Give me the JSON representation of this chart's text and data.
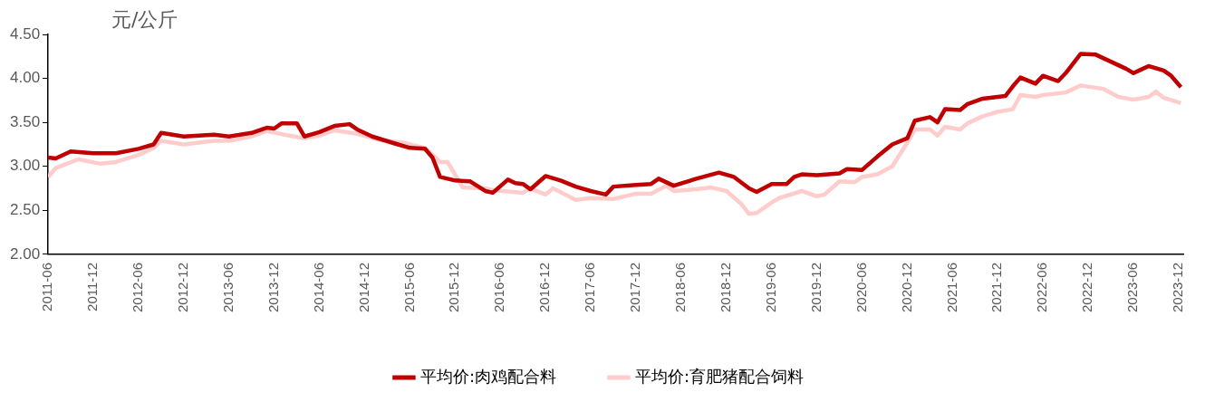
{
  "chart_data": {
    "type": "line",
    "ylabel": "元/公斤",
    "legend": "bottom",
    "grid": false,
    "marker": "none",
    "xlim": [
      "2011-06",
      "2023-12-20"
    ],
    "xticks": [
      "2011-06",
      "2011-12",
      "2012-06",
      "2012-12",
      "2013-06",
      "2013-12",
      "2014-06",
      "2014-12",
      "2015-06",
      "2015-12",
      "2016-06",
      "2016-12",
      "2017-06",
      "2017-12",
      "2018-06",
      "2018-12",
      "2019-06",
      "2019-12",
      "2020-06",
      "2020-12",
      "2021-06",
      "2021-12",
      "2022-06",
      "2022-12",
      "2023-06",
      "2023-12"
    ],
    "ylim": [
      2,
      4.5
    ],
    "yticks": [
      {
        "value": 2,
        "label": "2.00"
      },
      {
        "value": 2.5,
        "label": "2.50"
      },
      {
        "value": 3,
        "label": "3.00"
      },
      {
        "value": 3.5,
        "label": "3.50"
      },
      {
        "value": 4,
        "label": "4.00"
      },
      {
        "value": 4.5,
        "label": "4.50"
      }
    ],
    "series": [
      {
        "name": "平均价:肉鸡配合料",
        "color": "#c00000",
        "x": [
          "2011-06",
          "2011-07",
          "2011-09",
          "2011-12",
          "2012-03",
          "2012-06",
          "2012-08",
          "2012-09",
          "2012-12",
          "2013-04",
          "2013-06",
          "2013-09",
          "2013-11",
          "2013-12",
          "2014-01",
          "2014-03",
          "2014-04",
          "2014-06",
          "2014-08",
          "2014-10",
          "2014-11",
          "2015-01",
          "2015-04",
          "2015-06",
          "2015-08",
          "2015-09",
          "2015-10",
          "2015-12",
          "2016-02",
          "2016-04",
          "2016-05",
          "2016-07",
          "2016-08",
          "2016-09",
          "2016-10",
          "2016-12",
          "2017-02",
          "2017-04",
          "2017-06",
          "2017-08",
          "2017-09",
          "2017-12",
          "2018-02",
          "2018-03",
          "2018-05",
          "2018-08",
          "2018-11",
          "2019-01",
          "2019-03",
          "2019-04",
          "2019-06",
          "2019-08",
          "2019-09",
          "2019-10",
          "2019-12",
          "2020-03",
          "2020-04",
          "2020-06",
          "2020-08",
          "2020-10",
          "2020-12",
          "2021-01",
          "2021-03",
          "2021-04",
          "2021-05",
          "2021-07",
          "2021-08",
          "2021-10",
          "2022-01",
          "2022-02",
          "2022-03",
          "2022-05",
          "2022-06",
          "2022-08",
          "2022-09",
          "2022-11",
          "2023-01",
          "2023-03",
          "2023-05",
          "2023-06",
          "2023-07",
          "2023-08",
          "2023-10",
          "2023-11",
          "2023-12-10"
        ],
        "values": [
          3.1,
          3.09,
          3.17,
          3.15,
          3.15,
          3.2,
          3.25,
          3.38,
          3.34,
          3.36,
          3.34,
          3.38,
          3.44,
          3.43,
          3.49,
          3.49,
          3.34,
          3.39,
          3.46,
          3.48,
          3.42,
          3.34,
          3.26,
          3.21,
          3.2,
          3.1,
          2.88,
          2.84,
          2.83,
          2.72,
          2.7,
          2.85,
          2.81,
          2.8,
          2.74,
          2.89,
          2.84,
          2.77,
          2.72,
          2.68,
          2.77,
          2.79,
          2.8,
          2.86,
          2.78,
          2.86,
          2.93,
          2.88,
          2.75,
          2.71,
          2.8,
          2.8,
          2.88,
          2.91,
          2.9,
          2.92,
          2.97,
          2.96,
          3.11,
          3.25,
          3.32,
          3.52,
          3.56,
          3.5,
          3.65,
          3.64,
          3.71,
          3.77,
          3.8,
          3.91,
          4.01,
          3.94,
          4.03,
          3.97,
          4.06,
          4.28,
          4.27,
          4.19,
          4.11,
          4.06,
          4.1,
          4.14,
          4.09,
          4.03,
          3.9
        ]
      },
      {
        "name": "平均价:育肥猪配合饲料",
        "color": "#ffcccc",
        "x": [
          "2011-06",
          "2011-07",
          "2011-10",
          "2012-01",
          "2012-03",
          "2012-06",
          "2012-08",
          "2012-09",
          "2012-12",
          "2013-04",
          "2013-06",
          "2013-09",
          "2013-11",
          "2014-02",
          "2014-04",
          "2014-06",
          "2014-08",
          "2014-11",
          "2015-02",
          "2015-05",
          "2015-08",
          "2015-10",
          "2015-11",
          "2016-01",
          "2016-04",
          "2016-05",
          "2016-09",
          "2016-10",
          "2016-12",
          "2017-01",
          "2017-04",
          "2017-06",
          "2017-09",
          "2017-12",
          "2018-02",
          "2018-04",
          "2018-05",
          "2018-08",
          "2018-10",
          "2018-12",
          "2019-02",
          "2019-03",
          "2019-04",
          "2019-06",
          "2019-07",
          "2019-10",
          "2019-12",
          "2020-01",
          "2020-03",
          "2020-05",
          "2020-06",
          "2020-08",
          "2020-10",
          "2020-12",
          "2021-01",
          "2021-03",
          "2021-04",
          "2021-05",
          "2021-07",
          "2021-08",
          "2021-10",
          "2021-12",
          "2022-02",
          "2022-03",
          "2022-05",
          "2022-06",
          "2022-09",
          "2022-11",
          "2023-02",
          "2023-04",
          "2023-06",
          "2023-08",
          "2023-09",
          "2023-10",
          "2023-12-10"
        ],
        "values": [
          2.88,
          2.98,
          3.08,
          3.03,
          3.05,
          3.13,
          3.21,
          3.29,
          3.25,
          3.29,
          3.29,
          3.34,
          3.4,
          3.35,
          3.32,
          3.35,
          3.41,
          3.37,
          3.3,
          3.27,
          3.21,
          3.05,
          3.05,
          2.76,
          2.75,
          2.73,
          2.7,
          2.75,
          2.68,
          2.75,
          2.62,
          2.64,
          2.63,
          2.69,
          2.69,
          2.78,
          2.72,
          2.74,
          2.76,
          2.72,
          2.57,
          2.46,
          2.47,
          2.59,
          2.64,
          2.72,
          2.66,
          2.68,
          2.83,
          2.82,
          2.88,
          2.91,
          3.0,
          3.27,
          3.42,
          3.42,
          3.35,
          3.45,
          3.42,
          3.49,
          3.57,
          3.62,
          3.65,
          3.81,
          3.79,
          3.81,
          3.84,
          3.92,
          3.88,
          3.79,
          3.76,
          3.79,
          3.85,
          3.78,
          3.72
        ]
      }
    ]
  }
}
